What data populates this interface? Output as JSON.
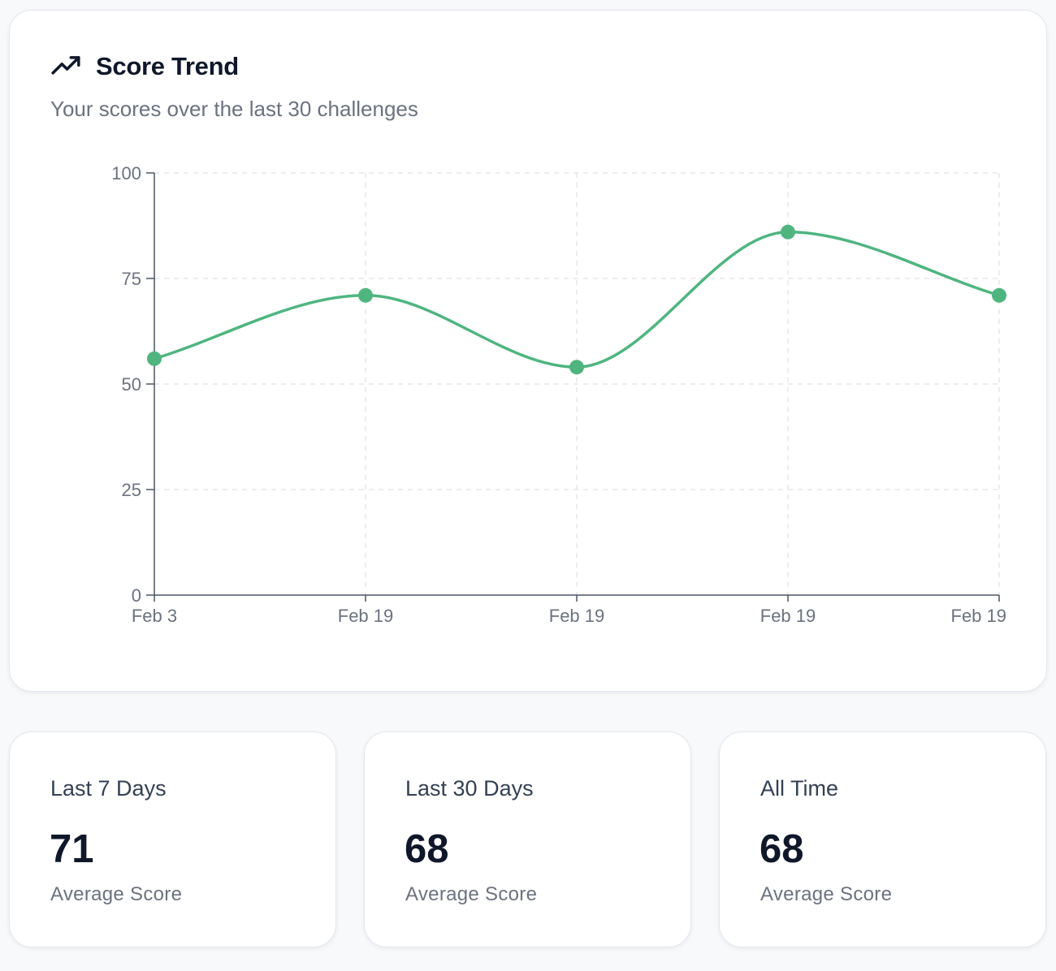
{
  "header": {
    "icon": "trending-up-icon",
    "title": "Score Trend",
    "subtitle": "Your scores over the last 30 challenges"
  },
  "colors": {
    "line": "#4fb57f",
    "axis": "#4b5563",
    "grid": "#e5e7eb"
  },
  "chart_data": {
    "type": "line",
    "title": "Score Trend",
    "categories": [
      "Feb 3",
      "Feb 19",
      "Feb 19",
      "Feb 19",
      "Feb 19"
    ],
    "series": [
      {
        "name": "Score",
        "values": [
          56,
          71,
          54,
          86,
          71
        ]
      }
    ],
    "yticks": [
      0,
      25,
      50,
      75,
      100
    ],
    "ylim": [
      0,
      100
    ],
    "grid": true,
    "smooth": true
  },
  "stats": [
    {
      "label": "Last 7 Days",
      "value": "71",
      "sub": "Average Score"
    },
    {
      "label": "Last 30 Days",
      "value": "68",
      "sub": "Average Score"
    },
    {
      "label": "All Time",
      "value": "68",
      "sub": "Average Score"
    }
  ]
}
